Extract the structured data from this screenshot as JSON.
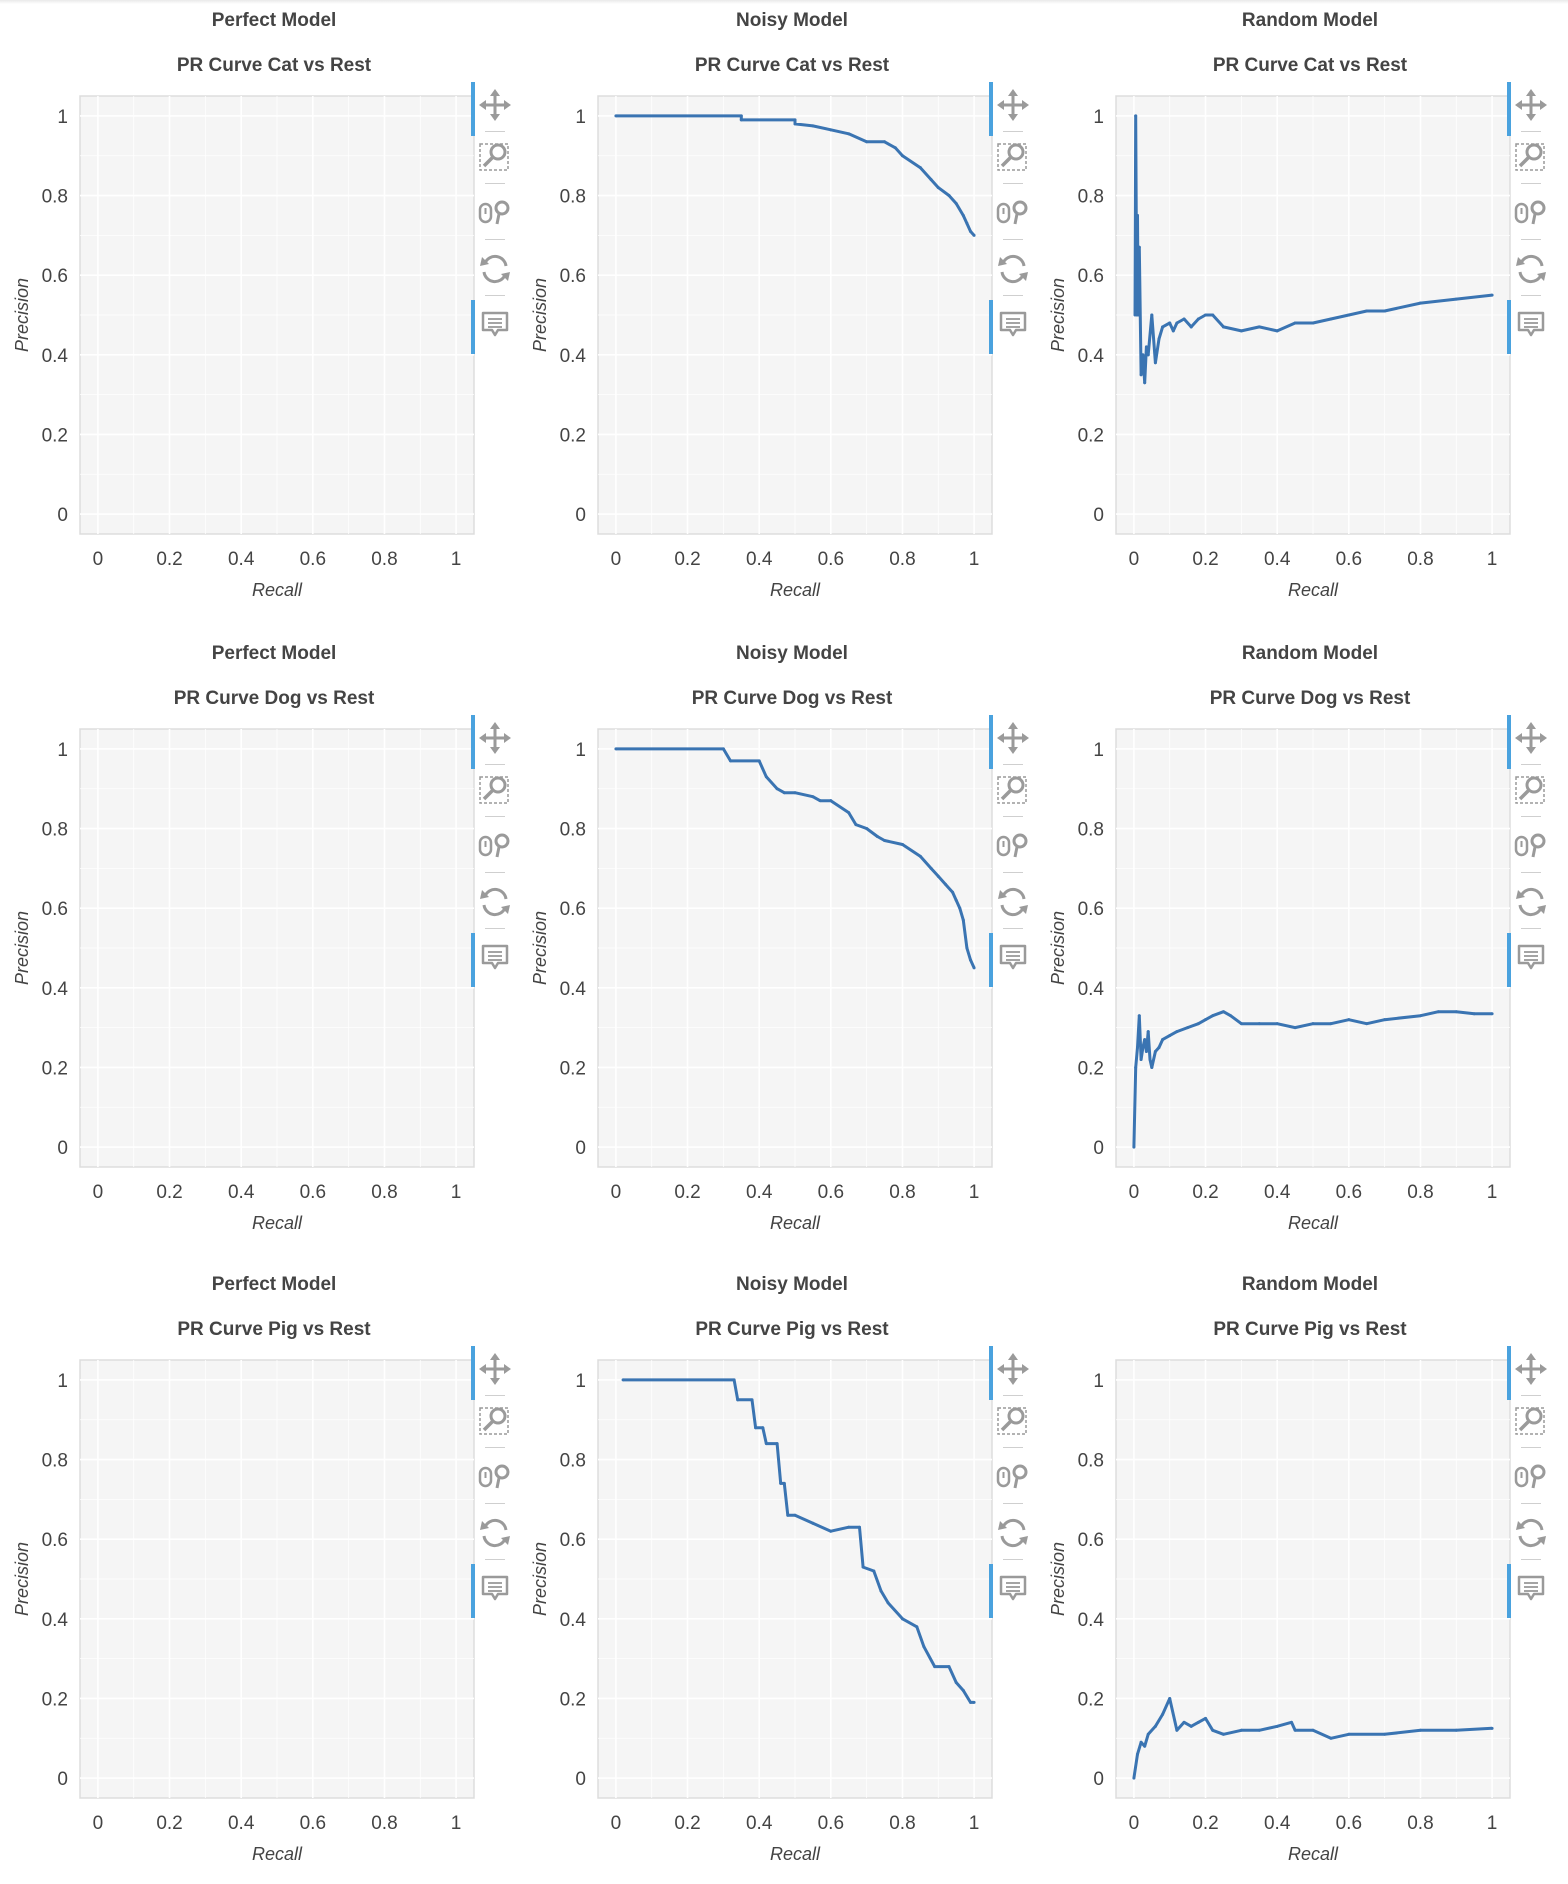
{
  "colors": {
    "line": "#3a74b2",
    "plot_bg": "#f5f5f5",
    "grid": "#ffffff",
    "frame": "#dddddd",
    "accent": "#4aa2de",
    "icon": "#9a9a9a"
  },
  "toolbar": {
    "tools": [
      {
        "name": "pan",
        "icon": "move-icon"
      },
      {
        "name": "box-zoom",
        "icon": "box-zoom-icon"
      },
      {
        "name": "wheel-zoom",
        "icon": "wheel-zoom-icon"
      },
      {
        "name": "reset",
        "icon": "reset-icon"
      },
      {
        "name": "hover",
        "icon": "hover-icon"
      }
    ],
    "active": [
      "pan",
      "hover"
    ]
  },
  "chart_data": [
    {
      "type": "line",
      "model": "Perfect Model",
      "title": "PR Curve Cat vs Rest",
      "xlabel": "Recall",
      "ylabel": "Precision",
      "xlim": [
        -0.05,
        1.05
      ],
      "ylim": [
        -0.05,
        1.05
      ],
      "xticks": [
        "0",
        "0.2",
        "0.4",
        "0.6",
        "0.8",
        "1"
      ],
      "yticks": [
        "0",
        "0.2",
        "0.4",
        "0.6",
        "0.8",
        "1"
      ],
      "x": [],
      "y": []
    },
    {
      "type": "line",
      "model": "Noisy Model",
      "title": "PR Curve Cat vs Rest",
      "xlabel": "Recall",
      "ylabel": "Precision",
      "xlim": [
        -0.05,
        1.05
      ],
      "ylim": [
        -0.05,
        1.05
      ],
      "xticks": [
        "0",
        "0.2",
        "0.4",
        "0.6",
        "0.8",
        "1"
      ],
      "yticks": [
        "0",
        "0.2",
        "0.4",
        "0.6",
        "0.8",
        "1"
      ],
      "x": [
        0,
        0.35,
        0.35,
        0.5,
        0.5,
        0.55,
        0.6,
        0.65,
        0.7,
        0.75,
        0.78,
        0.8,
        0.85,
        0.88,
        0.9,
        0.93,
        0.95,
        0.97,
        0.98,
        0.99,
        1.0
      ],
      "y": [
        1.0,
        1.0,
        0.99,
        0.99,
        0.98,
        0.975,
        0.965,
        0.955,
        0.935,
        0.935,
        0.92,
        0.9,
        0.87,
        0.84,
        0.82,
        0.8,
        0.78,
        0.75,
        0.73,
        0.71,
        0.7
      ]
    },
    {
      "type": "line",
      "model": "Random Model",
      "title": "PR Curve Cat vs Rest",
      "xlabel": "Recall",
      "ylabel": "Precision",
      "xlim": [
        -0.05,
        1.05
      ],
      "ylim": [
        -0.05,
        1.05
      ],
      "xticks": [
        "0",
        "0.2",
        "0.4",
        "0.6",
        "0.8",
        "1"
      ],
      "yticks": [
        "0",
        "0.2",
        "0.4",
        "0.6",
        "0.8",
        "1"
      ],
      "x": [
        0.003,
        0.005,
        0.008,
        0.01,
        0.012,
        0.015,
        0.02,
        0.025,
        0.03,
        0.035,
        0.04,
        0.05,
        0.06,
        0.07,
        0.08,
        0.1,
        0.11,
        0.12,
        0.14,
        0.16,
        0.18,
        0.2,
        0.22,
        0.25,
        0.3,
        0.35,
        0.4,
        0.45,
        0.5,
        0.55,
        0.6,
        0.65,
        0.7,
        0.8,
        0.9,
        1.0
      ],
      "y": [
        0.5,
        1.0,
        0.5,
        0.75,
        0.5,
        0.67,
        0.35,
        0.4,
        0.33,
        0.42,
        0.4,
        0.5,
        0.38,
        0.44,
        0.47,
        0.48,
        0.46,
        0.48,
        0.49,
        0.47,
        0.49,
        0.5,
        0.5,
        0.47,
        0.46,
        0.47,
        0.46,
        0.48,
        0.48,
        0.49,
        0.5,
        0.51,
        0.51,
        0.53,
        0.54,
        0.55
      ]
    },
    {
      "type": "line",
      "model": "Perfect Model",
      "title": "PR Curve Dog vs Rest",
      "xlabel": "Recall",
      "ylabel": "Precision",
      "xlim": [
        -0.05,
        1.05
      ],
      "ylim": [
        -0.05,
        1.05
      ],
      "xticks": [
        "0",
        "0.2",
        "0.4",
        "0.6",
        "0.8",
        "1"
      ],
      "yticks": [
        "0",
        "0.2",
        "0.4",
        "0.6",
        "0.8",
        "1"
      ],
      "x": [],
      "y": []
    },
    {
      "type": "line",
      "model": "Noisy Model",
      "title": "PR Curve Dog vs Rest",
      "xlabel": "Recall",
      "ylabel": "Precision",
      "xlim": [
        -0.05,
        1.05
      ],
      "ylim": [
        -0.05,
        1.05
      ],
      "xticks": [
        "0",
        "0.2",
        "0.4",
        "0.6",
        "0.8",
        "1"
      ],
      "yticks": [
        "0",
        "0.2",
        "0.4",
        "0.6",
        "0.8",
        "1"
      ],
      "x": [
        0,
        0.3,
        0.32,
        0.4,
        0.42,
        0.45,
        0.47,
        0.5,
        0.55,
        0.57,
        0.6,
        0.65,
        0.67,
        0.7,
        0.73,
        0.75,
        0.8,
        0.85,
        0.88,
        0.9,
        0.92,
        0.94,
        0.95,
        0.96,
        0.97,
        0.98,
        0.99,
        1.0
      ],
      "y": [
        1.0,
        1.0,
        0.97,
        0.97,
        0.93,
        0.9,
        0.89,
        0.89,
        0.88,
        0.87,
        0.87,
        0.84,
        0.81,
        0.8,
        0.78,
        0.77,
        0.76,
        0.73,
        0.7,
        0.68,
        0.66,
        0.64,
        0.62,
        0.6,
        0.57,
        0.5,
        0.47,
        0.45
      ]
    },
    {
      "type": "line",
      "model": "Random Model",
      "title": "PR Curve Dog vs Rest",
      "xlabel": "Recall",
      "ylabel": "Precision",
      "xlim": [
        -0.05,
        1.05
      ],
      "ylim": [
        -0.05,
        1.05
      ],
      "xticks": [
        "0",
        "0.2",
        "0.4",
        "0.6",
        "0.8",
        "1"
      ],
      "yticks": [
        "0",
        "0.2",
        "0.4",
        "0.6",
        "0.8",
        "1"
      ],
      "x": [
        0,
        0.005,
        0.01,
        0.015,
        0.02,
        0.025,
        0.03,
        0.035,
        0.04,
        0.045,
        0.05,
        0.06,
        0.07,
        0.08,
        0.1,
        0.12,
        0.15,
        0.18,
        0.2,
        0.22,
        0.25,
        0.27,
        0.3,
        0.35,
        0.4,
        0.45,
        0.5,
        0.55,
        0.6,
        0.65,
        0.7,
        0.8,
        0.85,
        0.9,
        0.95,
        1.0
      ],
      "y": [
        0.0,
        0.2,
        0.25,
        0.33,
        0.22,
        0.25,
        0.27,
        0.24,
        0.29,
        0.22,
        0.2,
        0.24,
        0.25,
        0.27,
        0.28,
        0.29,
        0.3,
        0.31,
        0.32,
        0.33,
        0.34,
        0.33,
        0.31,
        0.31,
        0.31,
        0.3,
        0.31,
        0.31,
        0.32,
        0.31,
        0.32,
        0.33,
        0.34,
        0.34,
        0.335,
        0.335
      ]
    },
    {
      "type": "line",
      "model": "Perfect Model",
      "title": "PR Curve Pig vs Rest",
      "xlabel": "Recall",
      "ylabel": "Precision",
      "xlim": [
        -0.05,
        1.05
      ],
      "ylim": [
        -0.05,
        1.05
      ],
      "xticks": [
        "0",
        "0.2",
        "0.4",
        "0.6",
        "0.8",
        "1"
      ],
      "yticks": [
        "0",
        "0.2",
        "0.4",
        "0.6",
        "0.8",
        "1"
      ],
      "x": [],
      "y": []
    },
    {
      "type": "line",
      "model": "Noisy Model",
      "title": "PR Curve Pig vs Rest",
      "xlabel": "Recall",
      "ylabel": "Precision",
      "xlim": [
        -0.05,
        1.05
      ],
      "ylim": [
        -0.05,
        1.05
      ],
      "xticks": [
        "0",
        "0.2",
        "0.4",
        "0.6",
        "0.8",
        "1"
      ],
      "yticks": [
        "0",
        "0.2",
        "0.4",
        "0.6",
        "0.8",
        "1"
      ],
      "x": [
        0.02,
        0.33,
        0.34,
        0.38,
        0.39,
        0.41,
        0.42,
        0.45,
        0.46,
        0.47,
        0.48,
        0.5,
        0.55,
        0.6,
        0.65,
        0.68,
        0.69,
        0.72,
        0.74,
        0.76,
        0.8,
        0.84,
        0.86,
        0.89,
        0.93,
        0.95,
        0.97,
        0.99,
        1.0
      ],
      "y": [
        1.0,
        1.0,
        0.95,
        0.95,
        0.88,
        0.88,
        0.84,
        0.84,
        0.74,
        0.74,
        0.66,
        0.66,
        0.64,
        0.62,
        0.63,
        0.63,
        0.53,
        0.52,
        0.47,
        0.44,
        0.4,
        0.38,
        0.33,
        0.28,
        0.28,
        0.24,
        0.22,
        0.19,
        0.19
      ]
    },
    {
      "type": "line",
      "model": "Random Model",
      "title": "PR Curve Pig vs Rest",
      "xlabel": "Recall",
      "ylabel": "Precision",
      "xlim": [
        -0.05,
        1.05
      ],
      "ylim": [
        -0.05,
        1.05
      ],
      "xticks": [
        "0",
        "0.2",
        "0.4",
        "0.6",
        "0.8",
        "1"
      ],
      "yticks": [
        "0",
        "0.2",
        "0.4",
        "0.6",
        "0.8",
        "1"
      ],
      "x": [
        0,
        0.01,
        0.02,
        0.03,
        0.04,
        0.06,
        0.08,
        0.1,
        0.12,
        0.14,
        0.16,
        0.18,
        0.2,
        0.22,
        0.25,
        0.3,
        0.35,
        0.4,
        0.44,
        0.45,
        0.5,
        0.55,
        0.6,
        0.7,
        0.8,
        0.9,
        1.0
      ],
      "y": [
        0.0,
        0.06,
        0.09,
        0.08,
        0.11,
        0.13,
        0.16,
        0.2,
        0.12,
        0.14,
        0.13,
        0.14,
        0.15,
        0.12,
        0.11,
        0.12,
        0.12,
        0.13,
        0.14,
        0.12,
        0.12,
        0.1,
        0.11,
        0.11,
        0.12,
        0.12,
        0.125
      ]
    }
  ]
}
